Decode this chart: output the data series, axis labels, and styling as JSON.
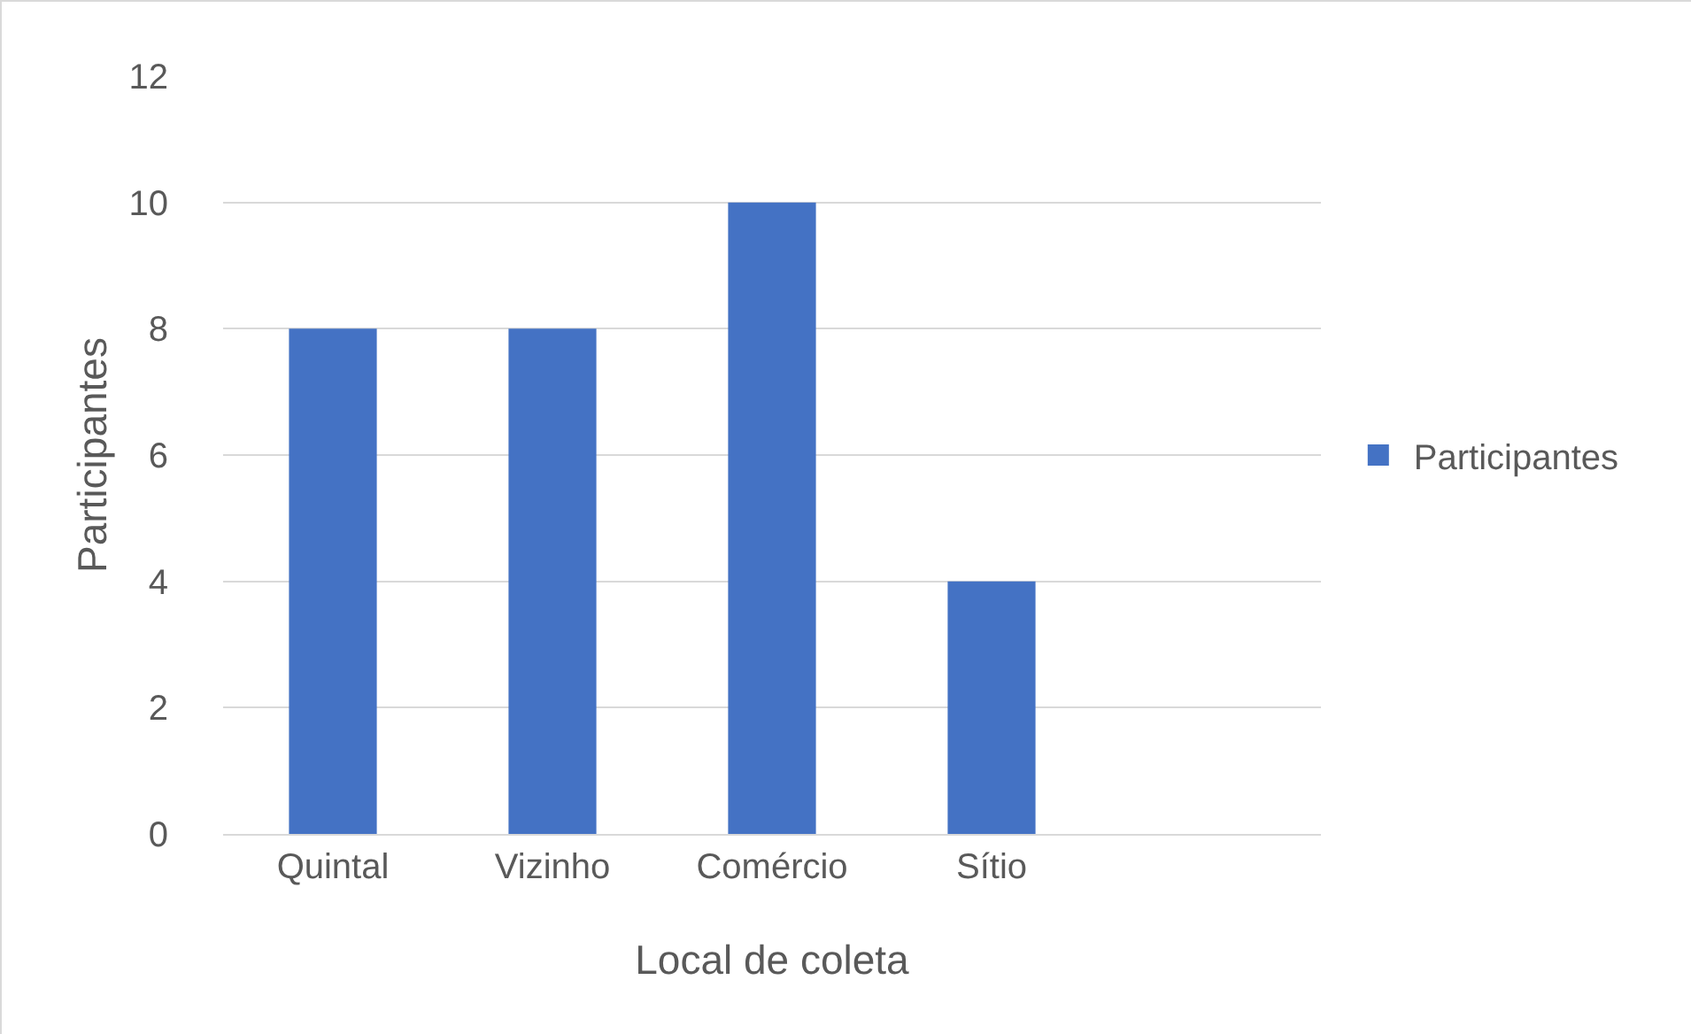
{
  "chart_data": {
    "type": "bar",
    "xlabel": "Local de coleta",
    "ylabel": "Participantes",
    "categories": [
      "Quintal",
      "Vizinho",
      "Comércio",
      "Sítio",
      null
    ],
    "series": [
      {
        "name": "Participantes",
        "color": "#4472c4",
        "values": [
          8,
          8,
          10,
          4,
          null
        ]
      }
    ],
    "ylim": [
      0,
      12
    ],
    "yticks": [
      0,
      2,
      4,
      6,
      8,
      10,
      12
    ],
    "grid": "y",
    "legend": "right"
  }
}
